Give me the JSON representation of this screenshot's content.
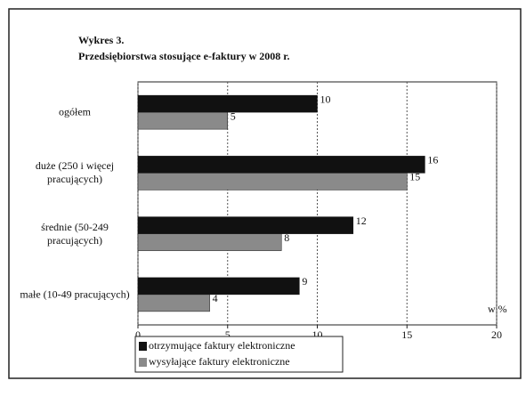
{
  "chart_data": {
    "type": "hbar",
    "title": "Wykres 3.",
    "subtitle": "Przedsiębiorstwa stosujące e-faktury w 2008 r.",
    "x_label": "w %",
    "categories": [
      "ogółem",
      "duże (250 i więcej pracujących)",
      "średnie (50-249 pracujących)",
      "małe (10-49 pracujących)"
    ],
    "series": [
      {
        "name": "otrzymujące faktury elektroniczne",
        "color": "#111111",
        "values": [
          10,
          16,
          12,
          9
        ]
      },
      {
        "name": "wysyłające faktury elektroniczne",
        "color": "#8a8a8a",
        "values": [
          5,
          15,
          8,
          4
        ]
      }
    ],
    "xlim": [
      0,
      20
    ],
    "xticks": [
      0,
      5,
      10,
      15,
      20
    ],
    "grid": true
  }
}
